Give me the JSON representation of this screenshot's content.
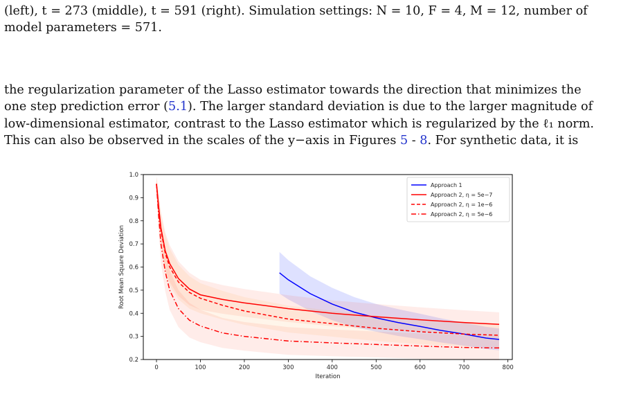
{
  "caption_tail": {
    "line1": "(left), t = 273 (middle), t = 591 (right). Simulation settings: N = 10, F = 4, M = 12, number of",
    "line2": "model parameters = 571."
  },
  "paragraph": {
    "line1": "the regularization parameter of the Lasso estimator towards the direction that minimizes the",
    "line2_a": "one step prediction error (",
    "line2_ref": "5.1",
    "line2_b": "). The larger standard deviation is due to the larger magnitude of",
    "line3": "low-dimensional estimator, contrast to the Lasso estimator which is regularized by the ℓ₁ norm.",
    "line4_a": "This can also be observed in the scales of the y−axis in Figures ",
    "line4_ref1": "5",
    "line4_mid": " - ",
    "line4_ref2": "8",
    "line4_b": ".  For synthetic data, it is"
  },
  "chart_data": {
    "type": "line",
    "xlabel": "Iteration",
    "ylabel": "Root Mean Square Deviation",
    "xlim": [
      -30,
      810
    ],
    "ylim": [
      0.2,
      1.0
    ],
    "xticks": [
      "0",
      "100",
      "200",
      "300",
      "400",
      "500",
      "600",
      "700",
      "800"
    ],
    "yticks": [
      "0.2",
      "0.3",
      "0.4",
      "0.5",
      "0.6",
      "0.7",
      "0.8",
      "0.9",
      "1.0"
    ],
    "grid": false,
    "legend_position": "top-right",
    "series": [
      {
        "name": "Approach 1",
        "color": "#0000ff",
        "style": "solid",
        "x": [
          280,
          300,
          350,
          400,
          450,
          500,
          550,
          600,
          650,
          700,
          750,
          780
        ],
        "y": [
          0.575,
          0.545,
          0.485,
          0.44,
          0.405,
          0.38,
          0.36,
          0.343,
          0.325,
          0.31,
          0.293,
          0.287
        ],
        "band": [
          0.09,
          0.085,
          0.075,
          0.07,
          0.065,
          0.06,
          0.058,
          0.055,
          0.052,
          0.05,
          0.048,
          0.047
        ]
      },
      {
        "name": "Approach 2, η = 5e−7",
        "color": "#ff0000",
        "style": "solid",
        "x": [
          0,
          5,
          10,
          20,
          30,
          50,
          75,
          100,
          150,
          200,
          300,
          400,
          500,
          600,
          700,
          780
        ],
        "y": [
          0.96,
          0.86,
          0.77,
          0.67,
          0.615,
          0.55,
          0.505,
          0.48,
          0.46,
          0.445,
          0.42,
          0.4,
          0.385,
          0.372,
          0.36,
          0.352
        ],
        "band": [
          0.03,
          0.06,
          0.07,
          0.08,
          0.08,
          0.075,
          0.07,
          0.065,
          0.062,
          0.06,
          0.058,
          0.056,
          0.055,
          0.054,
          0.053,
          0.052
        ]
      },
      {
        "name": "Approach 2, η = 1e−6",
        "color": "#ff0000",
        "style": "dashed",
        "x": [
          0,
          5,
          10,
          20,
          30,
          50,
          75,
          100,
          150,
          200,
          300,
          400,
          500,
          600,
          700,
          780
        ],
        "y": [
          0.96,
          0.85,
          0.76,
          0.66,
          0.6,
          0.535,
          0.49,
          0.465,
          0.435,
          0.41,
          0.375,
          0.355,
          0.335,
          0.32,
          0.31,
          0.305
        ],
        "band": [
          0.03,
          0.06,
          0.07,
          0.08,
          0.08,
          0.075,
          0.07,
          0.065,
          0.062,
          0.06,
          0.058,
          0.056,
          0.055,
          0.054,
          0.053,
          0.052
        ]
      },
      {
        "name": "Approach 2, η = 5e−6",
        "color": "#ff0000",
        "style": "dashdot",
        "x": [
          0,
          5,
          10,
          20,
          30,
          50,
          75,
          100,
          150,
          200,
          300,
          400,
          500,
          600,
          700,
          780
        ],
        "y": [
          0.96,
          0.82,
          0.7,
          0.58,
          0.5,
          0.42,
          0.37,
          0.345,
          0.315,
          0.3,
          0.28,
          0.272,
          0.265,
          0.258,
          0.252,
          0.25
        ],
        "band": [
          0.03,
          0.07,
          0.08,
          0.085,
          0.085,
          0.08,
          0.075,
          0.07,
          0.065,
          0.062,
          0.06,
          0.058,
          0.056,
          0.055,
          0.054,
          0.053
        ]
      }
    ]
  }
}
